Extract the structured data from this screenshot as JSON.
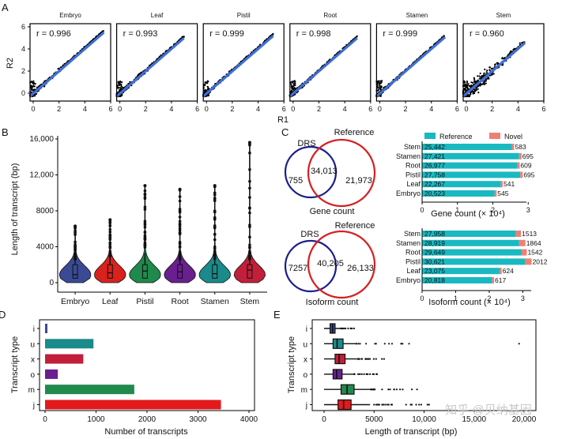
{
  "colors": {
    "embryo": "#3a4a94",
    "leaf": "#d9211e",
    "pistil": "#1f8a4c",
    "root": "#6a1f8f",
    "stamen": "#1a8a8a",
    "stem": "#c2203a",
    "fit_line": "#3f6fd6",
    "reference": "#19b9c1",
    "novel": "#f08072",
    "drs_circle": "#1a1f8a",
    "ref_circle": "#d62020",
    "type_i": "#3a4a94",
    "type_u": "#1a8a8a",
    "type_x": "#c2203a",
    "type_o": "#6a1f8f",
    "type_m": "#1f8a4c",
    "type_j": "#e31a1c"
  },
  "panel_labels": {
    "a": "A",
    "b": "B",
    "c": "C",
    "d": "D",
    "e": "E"
  },
  "watermark": "知乎 @贝纳基因",
  "chart_data": [
    {
      "id": "A",
      "type": "scatter",
      "xlabel": "R1",
      "ylabel": "R2",
      "xlim": [
        0,
        6
      ],
      "ylim": [
        0,
        6
      ],
      "xticks": [
        "0",
        "2",
        "4",
        "6"
      ],
      "yticks": [
        "0",
        "2",
        "4",
        "6"
      ],
      "panels": [
        {
          "title": "Embryo",
          "r_text": "r = 0.996",
          "r": 0.996,
          "max": 5.5
        },
        {
          "title": "Leaf",
          "r_text": "r = 0.993",
          "r": 0.993,
          "max": 5.0
        },
        {
          "title": "Pistil",
          "r_text": "r = 0.999",
          "r": 0.999,
          "max": 5.2
        },
        {
          "title": "Root",
          "r_text": "r = 0.998",
          "r": 0.998,
          "max": 5.0
        },
        {
          "title": "Stamen",
          "r_text": "r = 0.999",
          "r": 0.999,
          "max": 5.1
        },
        {
          "title": "Stem",
          "r_text": "r = 0.960",
          "r": 0.96,
          "max": 4.6
        }
      ]
    },
    {
      "id": "B",
      "type": "violin",
      "ylabel": "Length of transcript (bp)",
      "ylim": [
        0,
        16000
      ],
      "yticks": [
        0,
        4000,
        8000,
        12000,
        16000
      ],
      "ytick_labels": [
        "0",
        "4000",
        "8000",
        "12,000",
        "16,000"
      ],
      "categories": [
        "Embryo",
        "Leaf",
        "Pistil",
        "Root",
        "Stamen",
        "Stem"
      ],
      "medians": [
        900,
        1100,
        1300,
        1200,
        1000,
        1400
      ],
      "max_values": [
        6300,
        7000,
        10800,
        10400,
        10800,
        15600
      ]
    },
    {
      "id": "C-venn",
      "type": "venn",
      "gene": {
        "left_label": "DRS",
        "right_label": "Reference",
        "drs_only": "755",
        "shared": "34,013",
        "ref_only": "21,973",
        "caption": "Gene count"
      },
      "isoform": {
        "left_label": "DRS",
        "right_label": "Reference",
        "drs_only": "7257",
        "shared": "40,205",
        "ref_only": "26,133",
        "caption": "Isoform count"
      }
    },
    {
      "id": "C-gene",
      "type": "bar",
      "legend": [
        "Reference",
        "Novel"
      ],
      "xlabel": "Gene count (× 10⁴)",
      "xlim": [
        0,
        3
      ],
      "xticks": [
        "0",
        "1",
        "2",
        "3"
      ],
      "categories": [
        "Stem",
        "Stamen",
        "Root",
        "Pistil",
        "Leaf",
        "Embryo"
      ],
      "series": [
        {
          "name": "Reference",
          "values": [
            25442,
            27421,
            26977,
            27758,
            22267,
            20523
          ],
          "labels": [
            "25,442",
            "27,421",
            "26,977",
            "27,758",
            "22,267",
            "20,523"
          ]
        },
        {
          "name": "Novel",
          "values": [
            583,
            695,
            609,
            695,
            541,
            545
          ],
          "labels": [
            "583",
            "695",
            "609",
            "695",
            "541",
            "545"
          ]
        }
      ]
    },
    {
      "id": "C-isoform",
      "type": "bar",
      "xlabel": "Isoform count (× 10⁴)",
      "xlim": [
        0,
        3.2
      ],
      "xticks": [
        "0",
        "1",
        "2",
        "3"
      ],
      "categories": [
        "Stem",
        "Stamen",
        "Root",
        "Pistil",
        "Leaf",
        "Embryo"
      ],
      "series": [
        {
          "name": "Reference",
          "values": [
            27958,
            28919,
            29649,
            30621,
            23075,
            20818
          ],
          "labels": [
            "27,958",
            "28,919",
            "29,649",
            "30,621",
            "23,075",
            "20,818"
          ]
        },
        {
          "name": "Novel",
          "values": [
            1513,
            1864,
            1542,
            2012,
            624,
            617
          ],
          "labels": [
            "1513",
            "1864",
            "1542",
            "2012",
            "624",
            "617"
          ]
        }
      ]
    },
    {
      "id": "D",
      "type": "bar",
      "ylabel": "Transcript type",
      "xlabel": "Number of transcripts",
      "xlim": [
        0,
        4000
      ],
      "xticks": [
        0,
        1000,
        2000,
        3000,
        4000
      ],
      "categories": [
        "i",
        "u",
        "x",
        "o",
        "m",
        "j"
      ],
      "values": [
        30,
        950,
        750,
        250,
        1750,
        3450
      ]
    },
    {
      "id": "E",
      "type": "boxplot",
      "ylabel": "Transcript type",
      "xlabel": "Length of transcript (bp)",
      "xlim": [
        0,
        20000
      ],
      "xticks": [
        0,
        5000,
        10000,
        15000,
        20000
      ],
      "xtick_labels": [
        "0",
        "5000",
        "10,000",
        "15,000",
        "20,000"
      ],
      "categories": [
        "i",
        "u",
        "x",
        "o",
        "m",
        "j"
      ],
      "boxes": [
        {
          "q1": 600,
          "median": 850,
          "q3": 1100,
          "wmax": 1700,
          "outliers": [
            3000
          ]
        },
        {
          "q1": 900,
          "median": 1300,
          "q3": 1900,
          "wmax": 3200,
          "outliers": [
            3600,
            4200,
            5200,
            6500,
            7700,
            19500
          ]
        },
        {
          "q1": 1100,
          "median": 1500,
          "q3": 2100,
          "wmax": 3400,
          "outliers": [
            3800,
            4400,
            5200,
            6000
          ]
        },
        {
          "q1": 900,
          "median": 1250,
          "q3": 1800,
          "wmax": 3000,
          "outliers": [
            3400,
            4000,
            4600,
            5300
          ]
        },
        {
          "q1": 1700,
          "median": 2300,
          "q3": 3000,
          "wmax": 4700,
          "outliers": [
            5000,
            5800,
            6600,
            7600,
            9300
          ]
        },
        {
          "q1": 1400,
          "median": 1950,
          "q3": 2700,
          "wmax": 4600,
          "outliers": [
            5000,
            5800,
            6800,
            8200,
            9500,
            10500
          ]
        }
      ]
    }
  ]
}
